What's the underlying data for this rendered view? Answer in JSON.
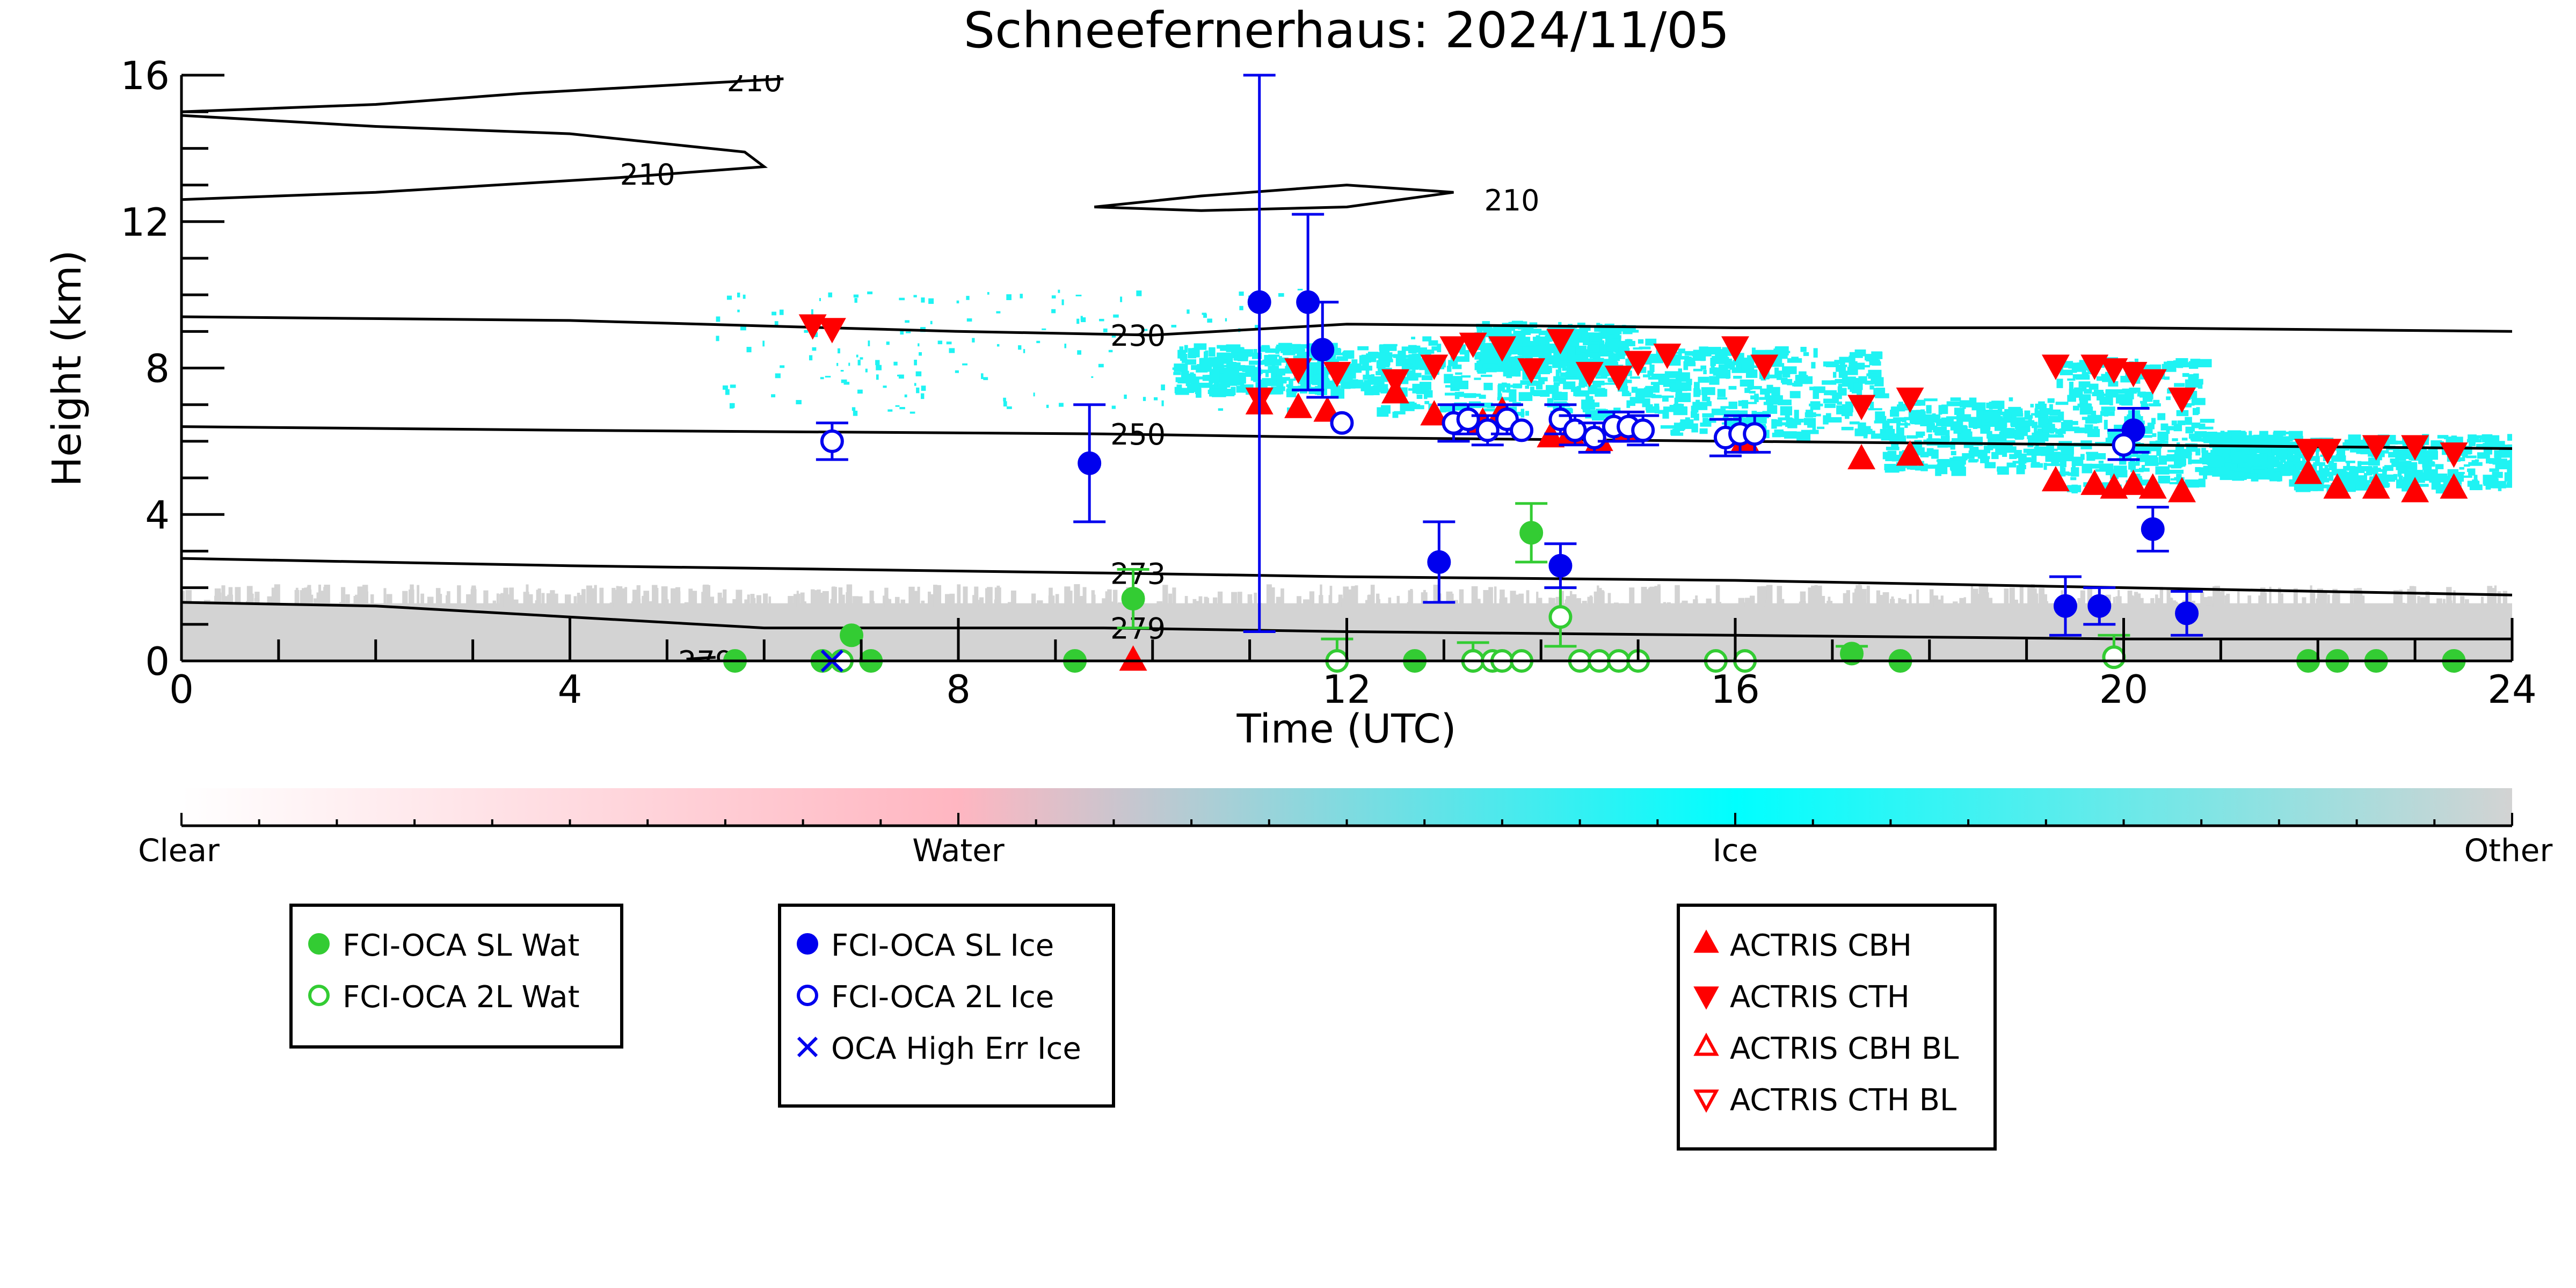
{
  "chart_data": {
    "type": "scatter",
    "title": "Schneefernerhaus: 2024/11/05",
    "xlabel": "Time (UTC)",
    "ylabel": "Height (km)",
    "xlim": [
      0,
      24
    ],
    "ylim": [
      0,
      16
    ],
    "x_ticks": [
      "0",
      "4",
      "8",
      "12",
      "16",
      "20",
      "24"
    ],
    "y_ticks": [
      "0",
      "4",
      "8",
      "12",
      "16"
    ],
    "grid": false,
    "colorbar": {
      "labels": [
        "Clear",
        "Water",
        "Ice",
        "Other"
      ],
      "colors": [
        "#ffffff",
        "#ffb6c1",
        "#00ffff",
        "#d3d3d3"
      ]
    },
    "background_fields": [
      {
        "name": "Ice",
        "color": "#1ff3f3",
        "x_range": [
          5.5,
          24
        ],
        "y_range": [
          4.6,
          10.3
        ]
      },
      {
        "name": "Other",
        "color": "#d3d3d3",
        "x_range": [
          0,
          24
        ],
        "y_range": [
          0,
          2.1
        ]
      }
    ],
    "contours": [
      {
        "label": "210",
        "points": [
          [
            0,
            15.0
          ],
          [
            2,
            15.2
          ],
          [
            3.5,
            15.5
          ],
          [
            6.2,
            15.9
          ]
        ]
      },
      {
        "label": "210",
        "points": [
          [
            0,
            14.9
          ],
          [
            2,
            14.6
          ],
          [
            4,
            14.4
          ],
          [
            5.8,
            13.9
          ],
          [
            6,
            13.5
          ],
          [
            4.5,
            13.2
          ],
          [
            2,
            12.8
          ],
          [
            0,
            12.6
          ]
        ]
      },
      {
        "label": "210",
        "points": [
          [
            9.4,
            12.4
          ],
          [
            10.5,
            12.7
          ],
          [
            12,
            13.0
          ],
          [
            13.1,
            12.8
          ],
          [
            12,
            12.4
          ],
          [
            10.5,
            12.3
          ],
          [
            9.4,
            12.4
          ]
        ]
      },
      {
        "label": "230",
        "points": [
          [
            0,
            9.4
          ],
          [
            4,
            9.3
          ],
          [
            8,
            9.0
          ],
          [
            10,
            8.9
          ],
          [
            12,
            9.2
          ],
          [
            16,
            9.1
          ],
          [
            20,
            9.1
          ],
          [
            24,
            9.0
          ]
        ]
      },
      {
        "label": "250",
        "points": [
          [
            0,
            6.4
          ],
          [
            4,
            6.3
          ],
          [
            9.5,
            6.2
          ],
          [
            12,
            6.1
          ],
          [
            16,
            6.0
          ],
          [
            20,
            5.9
          ],
          [
            24,
            5.8
          ]
        ]
      },
      {
        "label": "273",
        "points": [
          [
            0,
            2.8
          ],
          [
            4,
            2.6
          ],
          [
            9.5,
            2.4
          ],
          [
            12,
            2.3
          ],
          [
            16,
            2.2
          ],
          [
            20,
            2.0
          ],
          [
            24,
            1.8
          ]
        ]
      },
      {
        "label": "279",
        "points": [
          [
            0,
            1.6
          ],
          [
            2,
            1.5
          ],
          [
            4,
            1.2
          ],
          [
            6,
            0.9
          ],
          [
            9.5,
            0.9
          ],
          [
            12,
            0.8
          ],
          [
            16,
            0.7
          ],
          [
            20,
            0.6
          ],
          [
            24,
            0.6
          ]
        ]
      },
      {
        "label": "279",
        "points": [
          [
            5.2,
            0.05
          ],
          [
            5.5,
            0.1
          ]
        ]
      }
    ],
    "series": [
      {
        "name": "FCI-OCA SL Wat",
        "marker": "filled-circle",
        "color": "#33cc33",
        "x": [
          5.7,
          6.6,
          6.9,
          7.1,
          9.2,
          9.8,
          12.7,
          13.3,
          13.9,
          17.2,
          17.7,
          21.9,
          22.2,
          22.6,
          23.4
        ],
        "y": [
          0.0,
          0.0,
          0.7,
          0.0,
          0.0,
          1.7,
          0.0,
          0.0,
          3.5,
          0.2,
          0.0,
          0.0,
          0.0,
          0.0,
          0.0
        ],
        "yerr": [
          0,
          0,
          0,
          0,
          0,
          0.8,
          0,
          0.5,
          0.8,
          0.2,
          0,
          0,
          0,
          0,
          0
        ]
      },
      {
        "name": "FCI-OCA 2L Wat",
        "marker": "open-circle",
        "color": "#33cc33",
        "x": [
          6.8,
          11.9,
          13.3,
          13.5,
          13.6,
          13.8,
          14.2,
          14.4,
          14.6,
          14.8,
          15.0,
          15.8,
          16.1,
          19.9
        ],
        "y": [
          0.0,
          0.0,
          0.0,
          0.0,
          0.0,
          0.0,
          1.2,
          0.0,
          0.0,
          0.0,
          0.0,
          0.0,
          0.0,
          0.1
        ],
        "yerr": [
          0,
          0.6,
          0,
          0,
          0,
          0,
          0.8,
          0,
          0,
          0,
          0,
          0,
          0,
          0.6
        ]
      },
      {
        "name": "FCI-OCA SL Ice",
        "marker": "filled-circle",
        "color": "#0000ee",
        "x": [
          9.35,
          11.1,
          11.6,
          11.75,
          12.95,
          14.2,
          19.4,
          19.75,
          20.1,
          20.3,
          20.65
        ],
        "y": [
          5.4,
          9.8,
          9.8,
          8.5,
          2.7,
          2.6,
          1.5,
          1.5,
          6.3,
          3.6,
          1.3
        ],
        "yerr": [
          1.6,
          9.0,
          2.4,
          1.3,
          1.1,
          0.6,
          0.8,
          0.5,
          0.6,
          0.6,
          0.6
        ]
      },
      {
        "name": "FCI-OCA 2L Ice",
        "marker": "open-circle",
        "color": "#0000ee",
        "x": [
          6.7,
          11.95,
          13.1,
          13.25,
          13.45,
          13.65,
          13.8,
          14.2,
          14.35,
          14.55,
          14.75,
          14.9,
          15.05,
          15.9,
          16.05,
          16.2,
          20.0
        ],
        "y": [
          6.0,
          6.5,
          6.5,
          6.6,
          6.3,
          6.6,
          6.3,
          6.6,
          6.3,
          6.1,
          6.4,
          6.4,
          6.3,
          6.1,
          6.2,
          6.2,
          5.9
        ],
        "yerr": [
          0.5,
          0,
          0.5,
          0.4,
          0.4,
          0.4,
          0,
          0.4,
          0.4,
          0.4,
          0.4,
          0.4,
          0.4,
          0.5,
          0.5,
          0.5,
          0.4
        ]
      },
      {
        "name": "OCA High Err Ice",
        "marker": "x",
        "color": "#0000ee",
        "x": [
          6.7
        ],
        "y": [
          0.0
        ]
      },
      {
        "name": "ACTRIS CBH",
        "marker": "triangle-up",
        "color": "#ff0000",
        "x": [
          9.8,
          11.1,
          11.5,
          11.8,
          12.5,
          12.9,
          13.4,
          13.6,
          14.1,
          14.3,
          14.6,
          14.9,
          16.1,
          17.3,
          17.8,
          19.3,
          19.7,
          19.9,
          20.1,
          20.3,
          20.6,
          21.9,
          22.2,
          22.6,
          23.0,
          23.4
        ],
        "y": [
          0.0,
          7.0,
          6.9,
          6.8,
          7.3,
          6.7,
          6.5,
          6.8,
          6.1,
          6.2,
          6.0,
          6.3,
          6.0,
          5.5,
          5.6,
          4.9,
          4.8,
          4.7,
          4.8,
          4.7,
          4.6,
          5.1,
          4.7,
          4.7,
          4.6,
          4.7
        ],
        "yerr": [
          0,
          0,
          0,
          0,
          0,
          0,
          0,
          0,
          0,
          0,
          0,
          0,
          0,
          0,
          0,
          0,
          0,
          0,
          0,
          0,
          0,
          0,
          0,
          0,
          0,
          0
        ]
      },
      {
        "name": "ACTRIS CTH",
        "marker": "triangle-down",
        "color": "#ff0000",
        "x": [
          6.5,
          6.7,
          11.1,
          11.5,
          11.9,
          12.5,
          12.9,
          13.1,
          13.3,
          13.6,
          13.9,
          14.2,
          14.5,
          14.8,
          15.0,
          15.3,
          16.0,
          16.3,
          17.3,
          17.8,
          19.3,
          19.7,
          19.9,
          20.1,
          20.3,
          20.6,
          21.9,
          22.1,
          22.6,
          23.0,
          23.4
        ],
        "y": [
          9.2,
          9.1,
          7.2,
          8.0,
          7.9,
          7.7,
          8.1,
          8.6,
          8.7,
          8.6,
          8.0,
          8.8,
          7.9,
          7.8,
          8.2,
          8.4,
          8.6,
          8.1,
          7.0,
          7.2,
          8.1,
          8.1,
          8.0,
          7.9,
          7.7,
          7.2,
          5.8,
          5.8,
          5.9,
          5.9,
          5.7
        ],
        "yerr": [
          0,
          0,
          0,
          0,
          0,
          0,
          0,
          0,
          0,
          0,
          0,
          0,
          0,
          0,
          0,
          0,
          0,
          0,
          0,
          0,
          0,
          0,
          0,
          0,
          0,
          0,
          0,
          0,
          0,
          0,
          0
        ]
      },
      {
        "name": "ACTRIS CBH BL",
        "marker": "open-triangle-up",
        "color": "#ff0000",
        "x": [],
        "y": []
      },
      {
        "name": "ACTRIS CTH BL",
        "marker": "open-triangle-down",
        "color": "#ff0000",
        "x": [],
        "y": []
      }
    ],
    "legend_groups": [
      [
        "FCI-OCA SL Wat",
        "FCI-OCA 2L Wat"
      ],
      [
        "FCI-OCA SL Ice",
        "FCI-OCA 2L Ice",
        "OCA High Err Ice"
      ],
      [
        "ACTRIS CBH",
        "ACTRIS CTH",
        "ACTRIS CBH BL",
        "ACTRIS CTH BL"
      ]
    ]
  }
}
